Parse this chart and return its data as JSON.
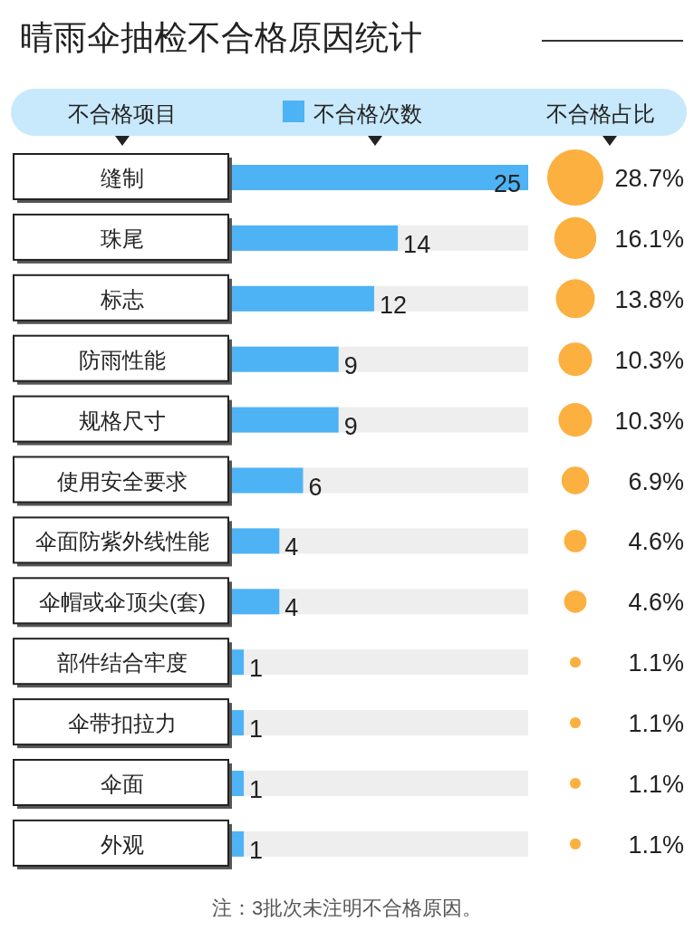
{
  "chart_data": [
    {
      "type": "bar",
      "orientation": "horizontal",
      "title": "晴雨伞抽检不合格原因统计",
      "ylabel": "不合格项目",
      "categories": [
        "缝制",
        "珠尾",
        "标志",
        "防雨性能",
        "规格尺寸",
        "使用安全要求",
        "伞面防紫外线性能",
        "伞帽或伞顶尖(套)",
        "部件结合牢度",
        "伞带扣拉力",
        "伞面",
        "外观"
      ],
      "series": [
        {
          "name": "不合格次数",
          "color": "#4db3f5",
          "values": [
            25,
            14,
            12,
            9,
            9,
            6,
            4,
            4,
            1,
            1,
            1,
            1
          ]
        }
      ],
      "data_labels": true,
      "legend": "top",
      "annotations": [
        "注：3批次未注明不合格原因。"
      ]
    },
    {
      "type": "other",
      "title": "不合格占比",
      "values": [
        28.7,
        16.1,
        13.8,
        10.3,
        10.3,
        6.9,
        4.6,
        4.6,
        1.1,
        1.1,
        1.1,
        1.1
      ],
      "value_labels": [
        "28.7%",
        "16.1%",
        "13.8%",
        "10.3%",
        "10.3%",
        "6.9%",
        "4.6%",
        "4.6%",
        "1.1%",
        "1.1%",
        "1.1%",
        "1.1%"
      ],
      "color": "#fbb040"
    }
  ]
}
